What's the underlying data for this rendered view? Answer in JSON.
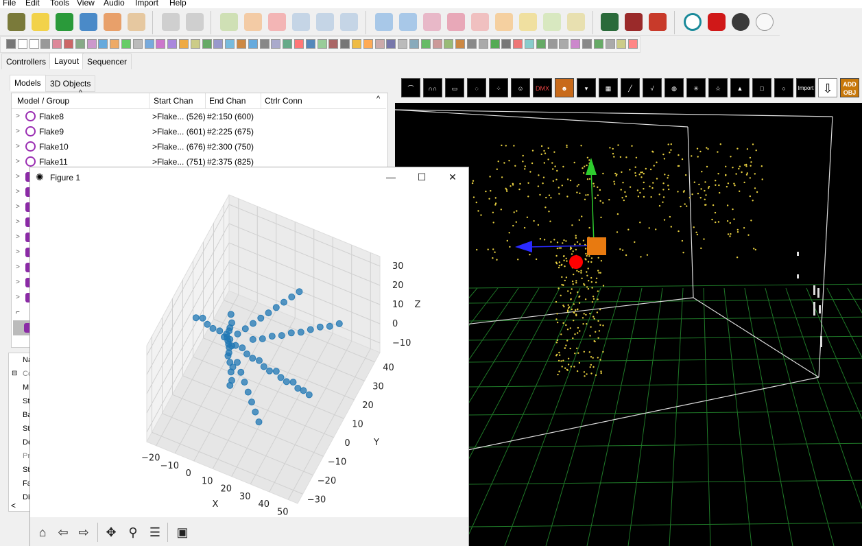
{
  "menu": [
    "File",
    "Edit",
    "Tools",
    "View",
    "Audio",
    "Import",
    "Help"
  ],
  "main_tabs": [
    "Controllers",
    "Layout",
    "Sequencer"
  ],
  "sub_tabs": [
    "Models",
    "3D Objects"
  ],
  "model_list": {
    "columns": [
      "Model / Group",
      "Start Chan",
      "End Chan",
      "Ctrlr Conn"
    ],
    "rows": [
      {
        "name": "Flake8",
        "start": ">Flake... (526)",
        "end": "#2:150 (600)"
      },
      {
        "name": "Flake9",
        "start": ">Flake... (601)",
        "end": "#2:225 (675)"
      },
      {
        "name": "Flake10",
        "start": ">Flake... (676)",
        "end": "#2:300 (750)"
      },
      {
        "name": "Flake11",
        "start": ">Flake... (751)",
        "end": "#2:375 (825)"
      }
    ]
  },
  "properties_partial": [
    "Na",
    "Co",
    "M",
    "St",
    "Ba",
    "St",
    "De",
    "Pr",
    "St",
    "Fa",
    "Di"
  ],
  "view_toolbar_labels": {
    "dmx": "DMX",
    "import": "Import",
    "add_obj": "ADD OBJ"
  },
  "figure": {
    "title": "Figure 1",
    "controls": {
      "minimize": "—",
      "maximize": "☐",
      "close": "✕"
    },
    "toolbar": [
      "home-icon",
      "back-icon",
      "forward-icon",
      "pan-icon",
      "zoom-icon",
      "configure-icon",
      "save-icon"
    ]
  },
  "chart_data": {
    "type": "scatter",
    "projection": "3d",
    "xlabel": "X",
    "ylabel": "Y",
    "zlabel": "Z",
    "x_ticks": [
      "−20",
      "−10",
      "0",
      "10",
      "20",
      "30",
      "40",
      "50"
    ],
    "y_ticks": [
      "−30",
      "−20",
      "−10",
      "0",
      "10",
      "20",
      "30",
      "40"
    ],
    "z_ticks": [
      "−10",
      "0",
      "10",
      "20",
      "30"
    ],
    "xlim": [
      -25,
      55
    ],
    "ylim": [
      -35,
      45
    ],
    "zlim": [
      -15,
      35
    ],
    "color": "#1f77b4",
    "grid": true,
    "points": [
      [
        0,
        0,
        -10
      ],
      [
        1,
        0,
        -7
      ],
      [
        0,
        1,
        -4
      ],
      [
        1,
        1,
        -1
      ],
      [
        0,
        0,
        2
      ],
      [
        -1,
        0,
        5
      ],
      [
        0,
        -1,
        8
      ],
      [
        1,
        0,
        11
      ],
      [
        0,
        0,
        14
      ],
      [
        -1,
        1,
        17
      ],
      [
        0,
        0,
        20
      ],
      [
        1,
        0,
        23
      ],
      [
        0,
        1,
        26
      ],
      [
        -3,
        0,
        14
      ],
      [
        -6,
        1,
        15
      ],
      [
        -9,
        0,
        16
      ],
      [
        -12,
        0,
        17
      ],
      [
        -15,
        1,
        18
      ],
      [
        -18,
        0,
        18
      ],
      [
        3,
        0,
        12
      ],
      [
        6,
        1,
        11
      ],
      [
        9,
        0,
        10
      ],
      [
        12,
        0,
        9
      ],
      [
        15,
        1,
        8
      ],
      [
        18,
        0,
        7
      ],
      [
        21,
        0,
        6
      ],
      [
        24,
        1,
        6
      ],
      [
        27,
        0,
        5
      ],
      [
        30,
        0,
        4
      ],
      [
        33,
        1,
        4
      ],
      [
        36,
        0,
        3
      ],
      [
        39,
        0,
        3
      ],
      [
        42,
        0,
        2
      ],
      [
        3,
        2,
        16
      ],
      [
        6,
        4,
        18
      ],
      [
        9,
        6,
        20
      ],
      [
        12,
        8,
        22
      ],
      [
        15,
        10,
        24
      ],
      [
        18,
        12,
        26
      ],
      [
        21,
        14,
        28
      ],
      [
        24,
        16,
        30
      ],
      [
        27,
        18,
        32
      ],
      [
        5,
        -2,
        6
      ],
      [
        8,
        -4,
        4
      ],
      [
        11,
        -6,
        2
      ],
      [
        14,
        -8,
        0
      ],
      [
        17,
        -10,
        -2
      ],
      [
        20,
        -12,
        -4
      ],
      [
        23,
        -14,
        -6
      ],
      [
        -2,
        3,
        6
      ],
      [
        -4,
        6,
        4
      ],
      [
        -6,
        9,
        2
      ],
      [
        -8,
        12,
        0
      ],
      [
        -10,
        15,
        -2
      ],
      [
        10,
        4,
        14
      ],
      [
        14,
        6,
        14
      ],
      [
        18,
        8,
        15
      ],
      [
        22,
        10,
        15
      ],
      [
        26,
        12,
        16
      ],
      [
        30,
        14,
        16
      ],
      [
        34,
        16,
        17
      ],
      [
        38,
        18,
        18
      ],
      [
        42,
        20,
        18
      ],
      [
        46,
        22,
        19
      ]
    ]
  }
}
